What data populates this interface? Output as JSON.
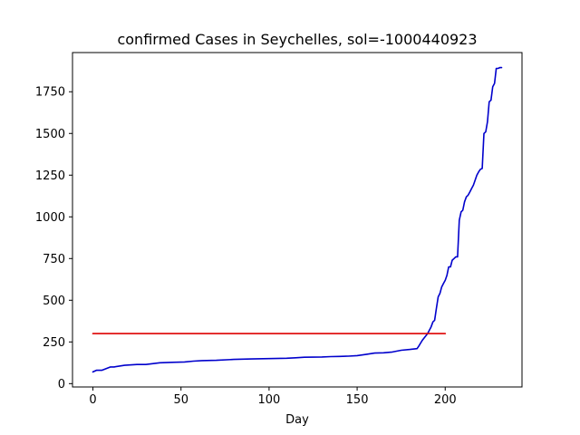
{
  "chart_data": {
    "type": "line",
    "title": "confirmed Cases in Seychelles, sol=-1000440923",
    "xlabel": "Day",
    "ylabel": "",
    "xlim": [
      -11.6,
      243.6
    ],
    "ylim": [
      -20,
      1985
    ],
    "xticks": [
      0,
      50,
      100,
      150,
      200
    ],
    "yticks": [
      0,
      250,
      500,
      750,
      1000,
      1250,
      1500,
      1750
    ],
    "grid": false,
    "series": [
      {
        "color": "#0000cc",
        "x": [
          0,
          2,
          5,
          10,
          12,
          18,
          25,
          30,
          38,
          45,
          52,
          57,
          62,
          70,
          80,
          90,
          100,
          110,
          115,
          120,
          130,
          135,
          140,
          145,
          150,
          155,
          160,
          165,
          170,
          175,
          180,
          184,
          185,
          187,
          190,
          192,
          193,
          194,
          195,
          196,
          197,
          198,
          199,
          200,
          201,
          202,
          203,
          204,
          205,
          206,
          207,
          208,
          209,
          210,
          211,
          212,
          213,
          214,
          215,
          216,
          217,
          218,
          219,
          220,
          221,
          222,
          223,
          224,
          225,
          226,
          227,
          228,
          229,
          230,
          231,
          232
        ],
        "y": [
          70,
          80,
          80,
          100,
          100,
          110,
          115,
          115,
          125,
          128,
          130,
          135,
          138,
          140,
          145,
          148,
          150,
          152,
          155,
          158,
          160,
          162,
          163,
          165,
          168,
          175,
          183,
          185,
          190,
          200,
          205,
          210,
          225,
          260,
          300,
          340,
          370,
          380,
          450,
          520,
          540,
          580,
          600,
          620,
          650,
          700,
          700,
          740,
          750,
          760,
          760,
          980,
          1030,
          1040,
          1090,
          1120,
          1130,
          1150,
          1170,
          1190,
          1220,
          1250,
          1270,
          1285,
          1290,
          1500,
          1510,
          1570,
          1690,
          1700,
          1780,
          1800,
          1890,
          1890,
          1895,
          1895
        ]
      },
      {
        "color": "#dd0000",
        "x": [
          0,
          200
        ],
        "y": [
          300,
          300
        ]
      }
    ]
  }
}
